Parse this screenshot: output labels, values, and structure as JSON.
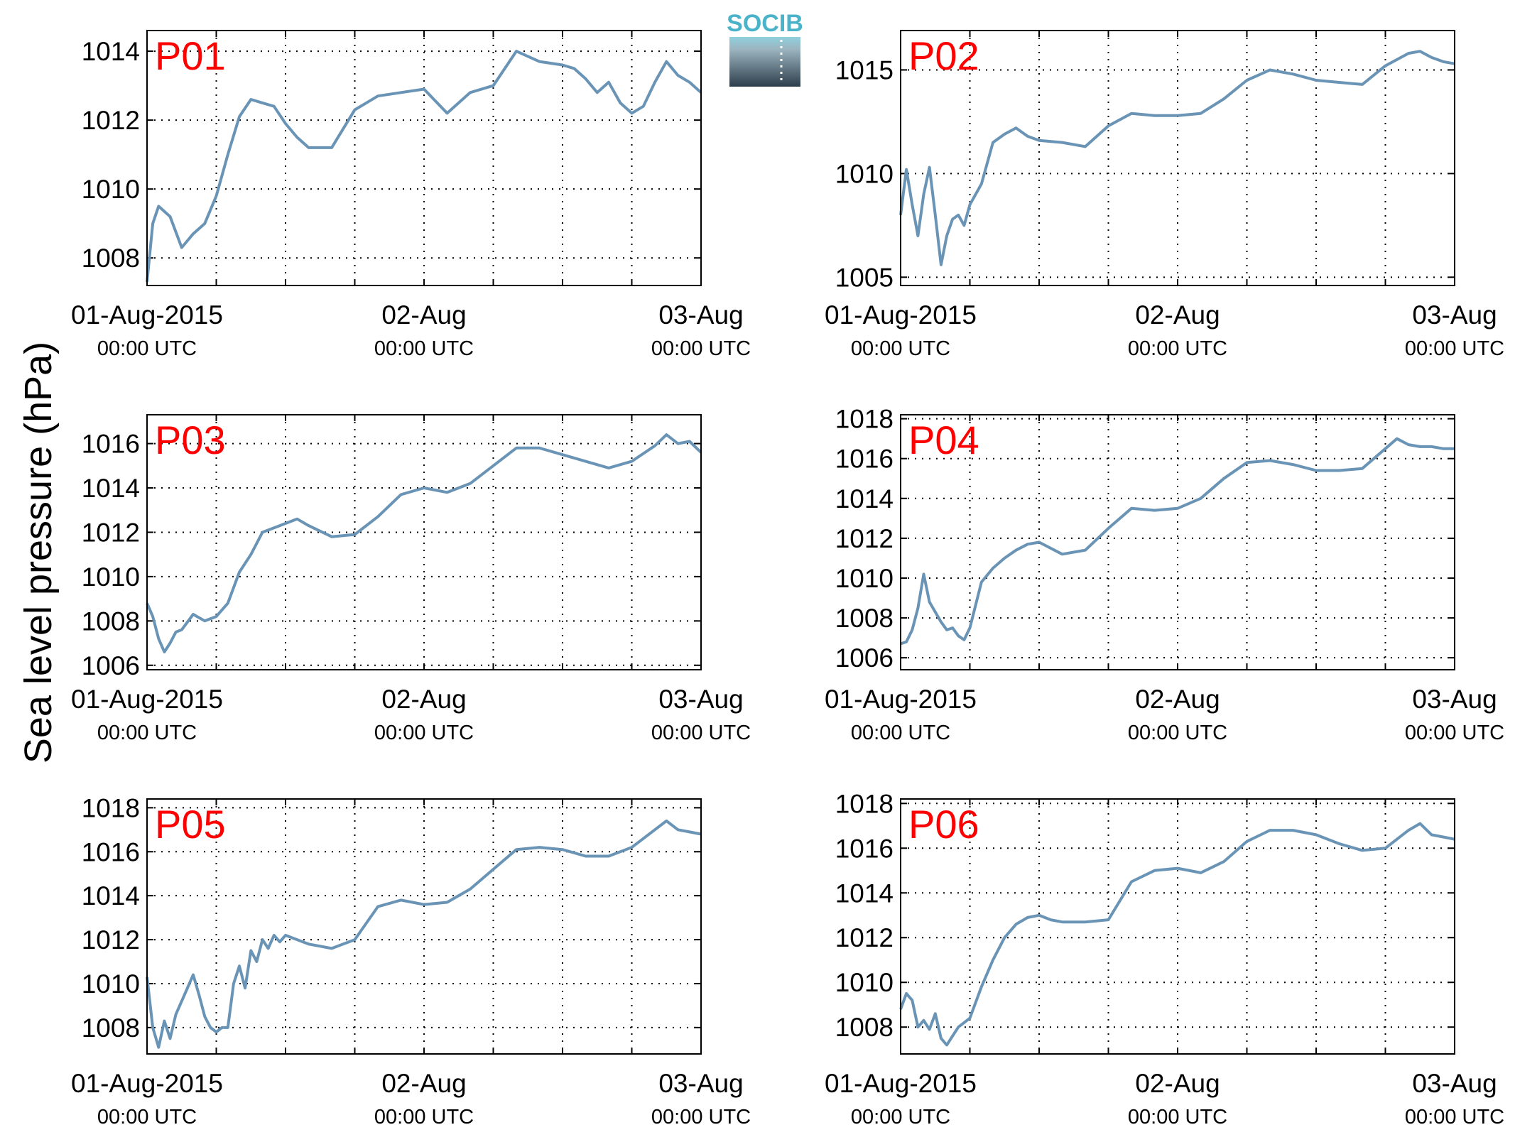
{
  "figure": {
    "ylabel": "Sea level pressure (hPa)",
    "logo_text": "SOCIB",
    "line_color": "#6a94b6",
    "label_color": "#ff0000"
  },
  "chart_data": [
    {
      "type": "line",
      "title": "P01",
      "x_range": [
        "2015-08-01T00:00Z",
        "2015-08-03T00:00Z"
      ],
      "ylim": [
        1007.2,
        1014.6
      ],
      "yticks": [
        1008,
        1010,
        1012,
        1014
      ],
      "xtick_labels": [
        [
          "01-Aug-2015",
          "00:00 UTC"
        ],
        [
          "02-Aug",
          "00:00 UTC"
        ],
        [
          "03-Aug",
          "00:00 UTC"
        ]
      ],
      "grid": true,
      "x_hours": [
        0,
        0.5,
        1,
        2,
        3,
        4,
        5,
        6,
        7,
        8,
        9,
        10,
        11,
        12,
        13,
        14,
        15,
        16,
        18,
        20,
        22,
        24,
        26,
        28,
        30,
        32,
        34,
        36,
        37,
        38,
        39,
        40,
        41,
        42,
        43,
        44,
        45,
        46,
        47,
        48
      ],
      "values": [
        1007.3,
        1009.0,
        1009.5,
        1009.2,
        1008.3,
        1008.7,
        1009.0,
        1009.8,
        1011.0,
        1012.1,
        1012.6,
        1012.5,
        1012.4,
        1011.9,
        1011.5,
        1011.2,
        1011.2,
        1011.2,
        1012.3,
        1012.7,
        1012.8,
        1012.9,
        1012.2,
        1012.8,
        1013.0,
        1014.0,
        1013.7,
        1013.6,
        1013.5,
        1013.2,
        1012.8,
        1013.1,
        1012.5,
        1012.2,
        1012.4,
        1013.1,
        1013.7,
        1013.3,
        1013.1,
        1012.8
      ]
    },
    {
      "type": "line",
      "title": "P02",
      "x_range": [
        "2015-08-01T00:00Z",
        "2015-08-03T00:00Z"
      ],
      "ylim": [
        1004.6,
        1016.9
      ],
      "yticks": [
        1005,
        1010,
        1015
      ],
      "xtick_labels": [
        [
          "01-Aug-2015",
          "00:00 UTC"
        ],
        [
          "02-Aug",
          "00:00 UTC"
        ],
        [
          "03-Aug",
          "00:00 UTC"
        ]
      ],
      "grid": true,
      "x_hours": [
        0,
        0.5,
        1,
        1.5,
        2,
        2.5,
        3,
        3.5,
        4,
        4.5,
        5,
        5.5,
        6,
        7,
        8,
        9,
        10,
        11,
        12,
        14,
        16,
        18,
        20,
        22,
        24,
        26,
        28,
        30,
        32,
        34,
        36,
        38,
        40,
        42,
        43,
        44,
        45,
        46,
        47,
        48
      ],
      "values": [
        1008.0,
        1010.2,
        1008.5,
        1007.0,
        1009.0,
        1010.3,
        1008.0,
        1005.6,
        1007.0,
        1007.8,
        1008.0,
        1007.5,
        1008.5,
        1009.5,
        1011.5,
        1011.9,
        1012.2,
        1011.8,
        1011.6,
        1011.5,
        1011.3,
        1012.3,
        1012.9,
        1012.8,
        1012.8,
        1012.9,
        1013.6,
        1014.5,
        1015.0,
        1014.8,
        1014.5,
        1014.4,
        1014.3,
        1015.2,
        1015.5,
        1015.8,
        1015.9,
        1015.6,
        1015.4,
        1015.3
      ]
    },
    {
      "type": "line",
      "title": "P03",
      "x_range": [
        "2015-08-01T00:00Z",
        "2015-08-03T00:00Z"
      ],
      "ylim": [
        1005.8,
        1017.3
      ],
      "yticks": [
        1006,
        1008,
        1010,
        1012,
        1014,
        1016
      ],
      "xtick_labels": [
        [
          "01-Aug-2015",
          "00:00 UTC"
        ],
        [
          "02-Aug",
          "00:00 UTC"
        ],
        [
          "03-Aug",
          "00:00 UTC"
        ]
      ],
      "grid": true,
      "x_hours": [
        0,
        0.5,
        1,
        1.5,
        2,
        2.5,
        3,
        4,
        5,
        6,
        7,
        8,
        9,
        10,
        11,
        12,
        13,
        14,
        16,
        18,
        20,
        22,
        24,
        26,
        28,
        30,
        32,
        34,
        36,
        38,
        40,
        42,
        44,
        45,
        46,
        47,
        48
      ],
      "values": [
        1008.8,
        1008.2,
        1007.2,
        1006.6,
        1007.0,
        1007.5,
        1007.6,
        1008.3,
        1008.0,
        1008.2,
        1008.8,
        1010.2,
        1011.0,
        1012.0,
        1012.2,
        1012.4,
        1012.6,
        1012.3,
        1011.8,
        1011.9,
        1012.7,
        1013.7,
        1014.0,
        1013.8,
        1014.2,
        1015.0,
        1015.8,
        1015.8,
        1015.5,
        1015.2,
        1014.9,
        1015.2,
        1015.9,
        1016.4,
        1016.0,
        1016.1,
        1015.6
      ]
    },
    {
      "type": "line",
      "title": "P04",
      "x_range": [
        "2015-08-01T00:00Z",
        "2015-08-03T00:00Z"
      ],
      "ylim": [
        1005.4,
        1018.2
      ],
      "yticks": [
        1006,
        1008,
        1010,
        1012,
        1014,
        1016,
        1018
      ],
      "xtick_labels": [
        [
          "01-Aug-2015",
          "00:00 UTC"
        ],
        [
          "02-Aug",
          "00:00 UTC"
        ],
        [
          "03-Aug",
          "00:00 UTC"
        ]
      ],
      "grid": true,
      "x_hours": [
        0,
        0.5,
        1,
        1.5,
        2,
        2.5,
        3,
        3.5,
        4,
        4.5,
        5,
        5.5,
        6,
        7,
        8,
        9,
        10,
        11,
        12,
        14,
        16,
        18,
        20,
        22,
        24,
        26,
        28,
        30,
        32,
        34,
        36,
        38,
        40,
        42,
        43,
        44,
        45,
        46,
        47,
        48
      ],
      "values": [
        1006.7,
        1006.8,
        1007.4,
        1008.5,
        1010.2,
        1008.8,
        1008.3,
        1007.8,
        1007.4,
        1007.5,
        1007.1,
        1006.9,
        1007.5,
        1009.8,
        1010.5,
        1011.0,
        1011.4,
        1011.7,
        1011.8,
        1011.2,
        1011.4,
        1012.5,
        1013.5,
        1013.4,
        1013.5,
        1014.0,
        1015.0,
        1015.8,
        1015.9,
        1015.7,
        1015.4,
        1015.4,
        1015.5,
        1016.5,
        1017.0,
        1016.7,
        1016.6,
        1016.6,
        1016.5,
        1016.5
      ]
    },
    {
      "type": "line",
      "title": "P05",
      "x_range": [
        "2015-08-01T00:00Z",
        "2015-08-03T00:00Z"
      ],
      "ylim": [
        1006.8,
        1018.4
      ],
      "yticks": [
        1008,
        1010,
        1012,
        1014,
        1016,
        1018
      ],
      "xtick_labels": [
        [
          "01-Aug-2015",
          "00:00 UTC"
        ],
        [
          "02-Aug",
          "00:00 UTC"
        ],
        [
          "03-Aug",
          "00:00 UTC"
        ]
      ],
      "grid": true,
      "x_hours": [
        0,
        0.5,
        1,
        1.5,
        2,
        2.5,
        3,
        3.5,
        4,
        4.5,
        5,
        5.5,
        6,
        6.5,
        7,
        7.5,
        8,
        8.5,
        9,
        9.5,
        10,
        10.5,
        11,
        11.5,
        12,
        13,
        14,
        16,
        18,
        20,
        22,
        24,
        26,
        28,
        30,
        32,
        34,
        36,
        38,
        40,
        42,
        44,
        45,
        46,
        47,
        48
      ],
      "values": [
        1010.3,
        1008.0,
        1007.1,
        1008.3,
        1007.5,
        1008.6,
        1009.2,
        1009.8,
        1010.4,
        1009.5,
        1008.5,
        1008.0,
        1007.8,
        1008.0,
        1008.0,
        1010.0,
        1010.8,
        1009.8,
        1011.5,
        1011.0,
        1012.0,
        1011.6,
        1012.2,
        1011.9,
        1012.2,
        1012.0,
        1011.8,
        1011.6,
        1012.0,
        1013.5,
        1013.8,
        1013.6,
        1013.7,
        1014.3,
        1015.2,
        1016.1,
        1016.2,
        1016.1,
        1015.8,
        1015.8,
        1016.2,
        1017.0,
        1017.4,
        1017.0,
        1016.9,
        1016.8
      ]
    },
    {
      "type": "line",
      "title": "P06",
      "x_range": [
        "2015-08-01T00:00Z",
        "2015-08-03T00:00Z"
      ],
      "ylim": [
        1006.8,
        1018.2
      ],
      "yticks": [
        1008,
        1010,
        1012,
        1014,
        1016,
        1018
      ],
      "xtick_labels": [
        [
          "01-Aug-2015",
          "00:00 UTC"
        ],
        [
          "02-Aug",
          "00:00 UTC"
        ],
        [
          "03-Aug",
          "00:00 UTC"
        ]
      ],
      "grid": true,
      "x_hours": [
        0,
        0.5,
        1,
        1.5,
        2,
        2.5,
        3,
        3.5,
        4,
        4.5,
        5,
        5.5,
        6,
        7,
        8,
        9,
        10,
        11,
        12,
        13,
        14,
        16,
        18,
        20,
        22,
        24,
        26,
        28,
        30,
        32,
        34,
        36,
        38,
        40,
        42,
        44,
        45,
        46,
        47,
        48
      ],
      "values": [
        1008.8,
        1009.5,
        1009.2,
        1008.0,
        1008.3,
        1007.9,
        1008.6,
        1007.5,
        1007.2,
        1007.6,
        1008.0,
        1008.2,
        1008.4,
        1009.8,
        1011.0,
        1012.0,
        1012.6,
        1012.9,
        1013.0,
        1012.8,
        1012.7,
        1012.7,
        1012.8,
        1014.5,
        1015.0,
        1015.1,
        1014.9,
        1015.4,
        1016.3,
        1016.8,
        1016.8,
        1016.6,
        1016.2,
        1015.9,
        1016.0,
        1016.8,
        1017.1,
        1016.6,
        1016.5,
        1016.4
      ]
    }
  ]
}
